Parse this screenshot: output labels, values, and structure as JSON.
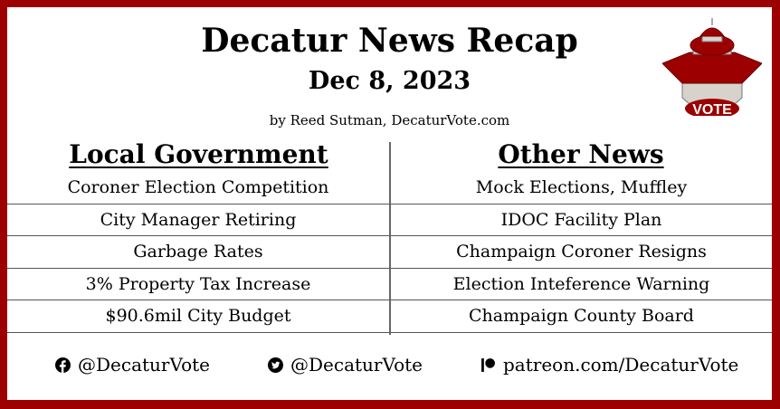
{
  "header": {
    "title": "Decatur News Recap",
    "date": "Dec 8, 2023",
    "byline": "by Reed Sutman, DecaturVote.com"
  },
  "logo": {
    "text": "VOTE",
    "color": "#9c0000"
  },
  "columns": {
    "left": {
      "heading": "Local Government",
      "items": [
        "Coroner Election Competition",
        "City Manager Retiring",
        "Garbage Rates",
        "3% Property Tax Increase",
        "$90.6mil City Budget"
      ]
    },
    "right": {
      "heading": "Other News",
      "items": [
        "Mock Elections, Muffley",
        "IDOC Facility Plan",
        "Champaign Coroner Resigns",
        "Election Inteference Warning",
        "Champaign County Board"
      ]
    }
  },
  "footer": {
    "facebook": "@DecaturVote",
    "twitter": "@DecaturVote",
    "patreon": "patreon.com/DecaturVote"
  },
  "colors": {
    "border": "#9c0000"
  }
}
